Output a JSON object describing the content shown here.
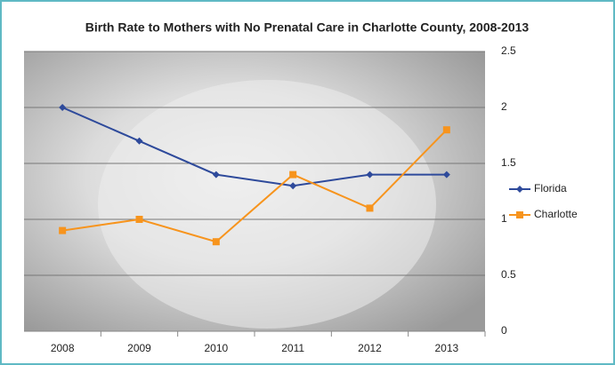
{
  "chart_data": {
    "type": "line",
    "title": "Birth Rate to Mothers with No Prenatal Care in Charlotte County, 2008-2013",
    "categories": [
      "2008",
      "2009",
      "2010",
      "2011",
      "2012",
      "2013"
    ],
    "series": [
      {
        "name": "Florida",
        "color": "#2e4a9b",
        "marker": "diamond",
        "values": [
          2.0,
          1.7,
          1.4,
          1.3,
          1.4,
          1.4
        ]
      },
      {
        "name": "Charlotte",
        "color": "#f7941d",
        "marker": "square",
        "values": [
          0.9,
          1.0,
          0.8,
          1.4,
          1.1,
          1.8
        ]
      }
    ],
    "ylim": [
      0,
      2.5
    ],
    "yticks": [
      0,
      0.5,
      1,
      1.5,
      2,
      2.5
    ],
    "grid": true,
    "legend": "right"
  }
}
